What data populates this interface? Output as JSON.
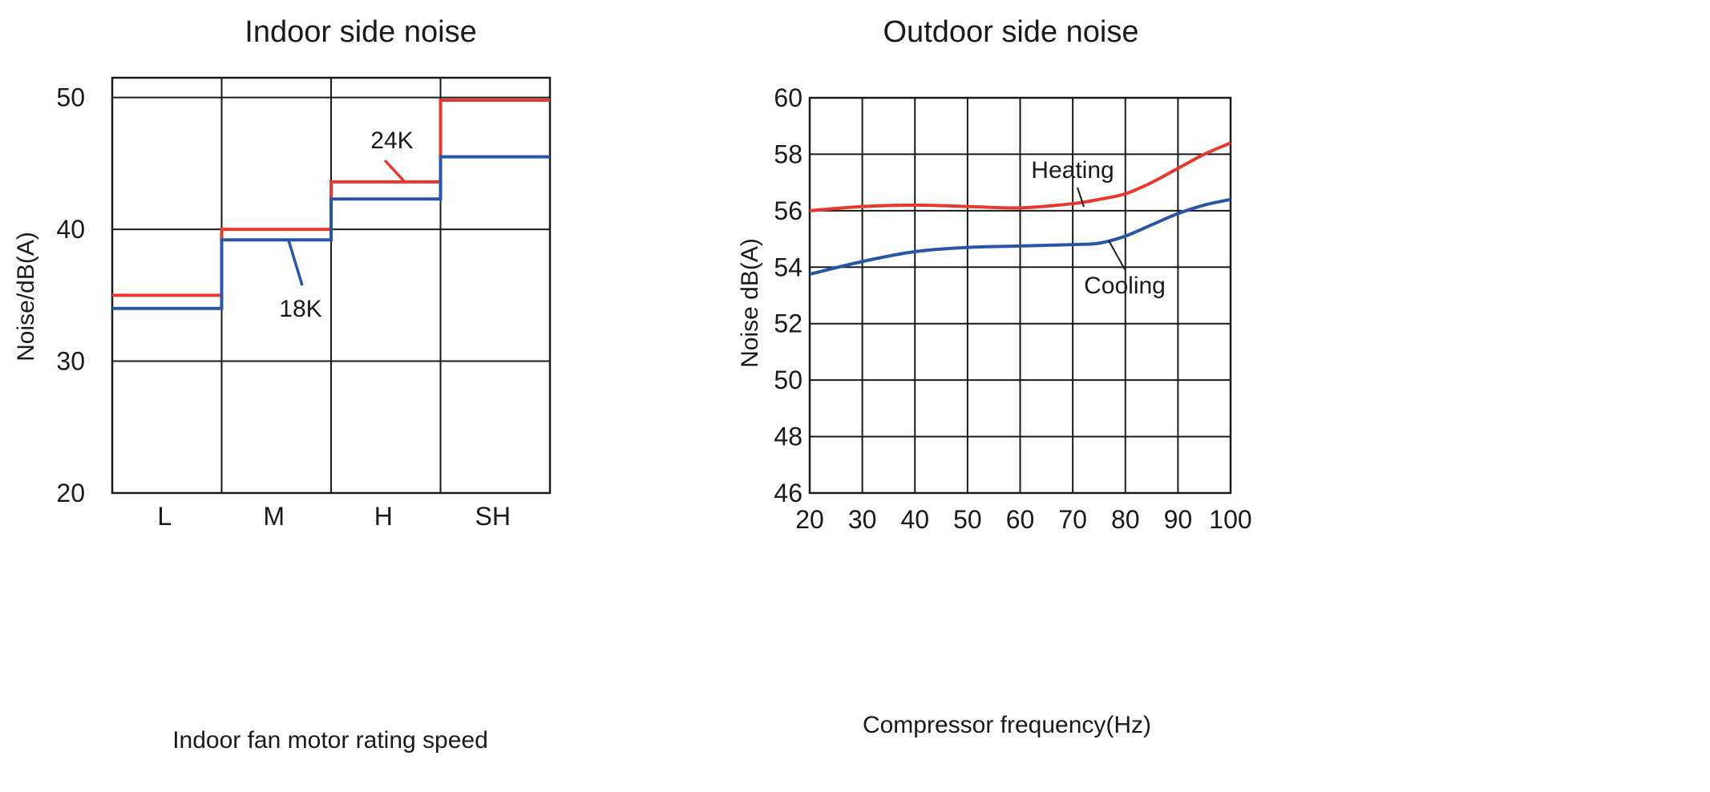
{
  "colors": {
    "red": "#e8392f",
    "blue": "#2855a6",
    "ink": "#1a1a1a"
  },
  "chart_data": [
    {
      "type": "line",
      "title": "Indoor side noise",
      "xlabel": "Indoor fan motor rating speed",
      "ylabel": "Noise/dB(A)",
      "categories": [
        "L",
        "M",
        "H",
        "SH"
      ],
      "ylim": [
        20,
        51.5
      ],
      "yticks": [
        20,
        30,
        40,
        50
      ],
      "grid": true,
      "step": true,
      "series": [
        {
          "name": "24K",
          "color": "#e8392f",
          "values": [
            35.0,
            40.0,
            43.6,
            49.8
          ]
        },
        {
          "name": "18K",
          "color": "#2855a6",
          "values": [
            34.0,
            39.2,
            42.3,
            45.5
          ]
        }
      ]
    },
    {
      "type": "line",
      "title": "Outdoor side noise",
      "xlabel": "Compressor frequency(Hz)",
      "ylabel": "Noise dB(A)",
      "xlim": [
        20,
        100
      ],
      "ylim": [
        46,
        60
      ],
      "xticks": [
        20,
        30,
        40,
        50,
        60,
        70,
        80,
        90,
        100
      ],
      "yticks": [
        46,
        48,
        50,
        52,
        54,
        56,
        58,
        60
      ],
      "grid": true,
      "series": [
        {
          "name": "Heating",
          "color": "#e8392f",
          "x": [
            20,
            30,
            40,
            50,
            60,
            70,
            75,
            80,
            85,
            90,
            95,
            100
          ],
          "y": [
            56.0,
            56.15,
            56.2,
            56.15,
            56.1,
            56.25,
            56.4,
            56.6,
            57.0,
            57.5,
            58.0,
            58.4
          ]
        },
        {
          "name": "Cooling",
          "color": "#2855a6",
          "x": [
            20,
            30,
            40,
            50,
            60,
            70,
            75,
            80,
            85,
            90,
            95,
            100
          ],
          "y": [
            53.75,
            54.2,
            54.55,
            54.7,
            54.75,
            54.8,
            54.85,
            55.1,
            55.5,
            55.9,
            56.2,
            56.4
          ]
        }
      ]
    }
  ]
}
